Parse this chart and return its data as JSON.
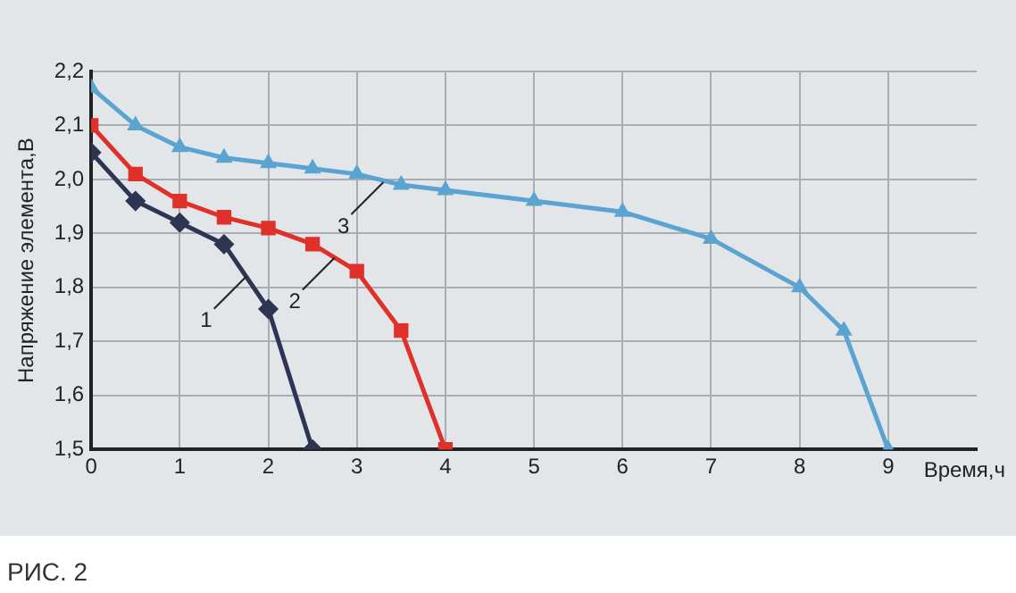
{
  "chart_data": {
    "type": "line",
    "xlabel": "Время,ч",
    "ylabel": "Напряжение элемента,В",
    "xlim": [
      0,
      10
    ],
    "xticks": [
      0,
      1,
      2,
      3,
      4,
      5,
      6,
      7,
      8,
      9
    ],
    "ylim": [
      1.5,
      2.2
    ],
    "yticks": [
      {
        "value": 1.5,
        "label": "1,5"
      },
      {
        "value": 1.6,
        "label": "1,6"
      },
      {
        "value": 1.7,
        "label": "1,7"
      },
      {
        "value": 1.8,
        "label": "1,8"
      },
      {
        "value": 1.9,
        "label": "1,9"
      },
      {
        "value": 2.0,
        "label": "2,0"
      },
      {
        "value": 2.1,
        "label": "2,1"
      },
      {
        "value": 2.2,
        "label": "2,2"
      }
    ],
    "grid": true,
    "legend": false,
    "series": [
      {
        "color": "#2e3552",
        "marker": "diamond",
        "x": [
          0,
          0.5,
          1,
          1.5,
          2,
          2.5
        ],
        "values": [
          2.05,
          1.96,
          1.92,
          1.88,
          1.76,
          1.5
        ]
      },
      {
        "color": "#e0302a",
        "marker": "square",
        "x": [
          0,
          0.5,
          1,
          1.5,
          2,
          2.5,
          3,
          3.5,
          4
        ],
        "values": [
          2.1,
          2.01,
          1.96,
          1.93,
          1.91,
          1.88,
          1.83,
          1.72,
          1.5
        ]
      },
      {
        "color": "#5ba3d0",
        "marker": "triangle",
        "x": [
          0,
          0.5,
          1,
          1.5,
          2,
          2.5,
          3,
          3.5,
          4,
          5,
          6,
          7,
          8,
          8.5,
          9
        ],
        "values": [
          2.17,
          2.1,
          2.06,
          2.04,
          2.03,
          2.02,
          2.01,
          1.99,
          1.98,
          1.96,
          1.94,
          1.89,
          1.8,
          1.72,
          1.5
        ]
      }
    ],
    "annotations": [
      {
        "text": "1",
        "x": 1.75,
        "y": 1.82
      },
      {
        "text": "2",
        "x": 2.75,
        "y": 1.855
      },
      {
        "text": "3",
        "x": 3.3,
        "y": 1.995
      },
      "РИС. 2"
    ]
  }
}
